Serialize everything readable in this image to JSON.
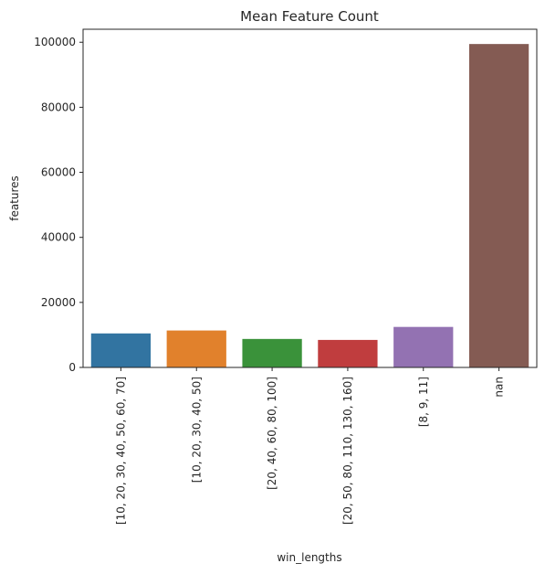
{
  "chart_data": {
    "type": "bar",
    "title": "Mean Feature Count",
    "xlabel": "win_lengths",
    "ylabel": "features",
    "categories": [
      "[10, 20, 30, 40, 50, 60, 70]",
      "[10, 20, 30, 40, 50]",
      "[20, 40, 60, 80, 100]",
      "[20, 50, 80, 110, 130, 160]",
      "[8, 9, 11]",
      "nan"
    ],
    "values": [
      10600,
      11500,
      8900,
      8600,
      12600,
      99600
    ],
    "colors": [
      "#3274a1",
      "#e1812c",
      "#3a923a",
      "#c03d3e",
      "#9372b2",
      "#845b53"
    ],
    "ylim": [
      0,
      104000
    ],
    "yticks": [
      0,
      20000,
      40000,
      60000,
      80000,
      100000
    ],
    "ytick_labels": [
      "0",
      "20000",
      "40000",
      "60000",
      "80000",
      "100000"
    ],
    "grid": false,
    "legend": "none"
  }
}
